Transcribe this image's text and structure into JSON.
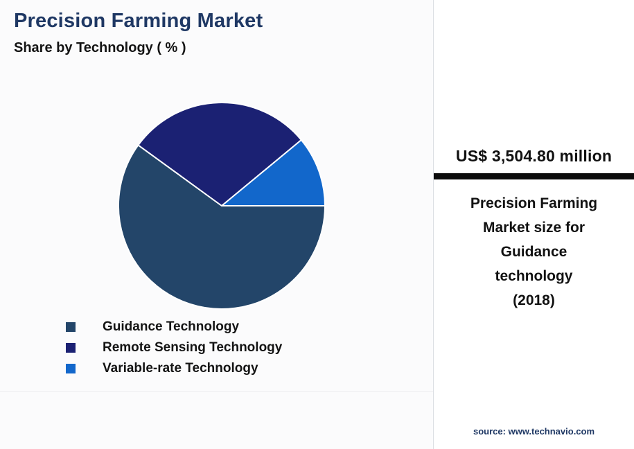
{
  "header": {
    "title": "Precision Farming Market",
    "subtitle": "Share by Technology ( % )"
  },
  "chart_data": {
    "type": "pie",
    "title": "Precision Farming Market",
    "subtitle": "Share by Technology ( % )",
    "unit": "%",
    "start_angle_deg": 90,
    "direction": "clockwise",
    "legend_position": "bottom-left",
    "slice_border_color": "#ffffff",
    "series": [
      {
        "name": "Guidance Technology",
        "value": 60,
        "color": "#234569"
      },
      {
        "name": "Remote Sensing Technology",
        "value": 29,
        "color": "#1b2173"
      },
      {
        "name": "Variable-rate Technology",
        "value": 11,
        "color": "#1267cb"
      }
    ]
  },
  "side_panel": {
    "headline": "US$ 3,504.80 million",
    "description_lines": "Precision Farming\nMarket size for\nGuidance\ntechnology\n(2018)",
    "source": "source: www.technavio.com",
    "bar_color": "#0c0c0c"
  }
}
